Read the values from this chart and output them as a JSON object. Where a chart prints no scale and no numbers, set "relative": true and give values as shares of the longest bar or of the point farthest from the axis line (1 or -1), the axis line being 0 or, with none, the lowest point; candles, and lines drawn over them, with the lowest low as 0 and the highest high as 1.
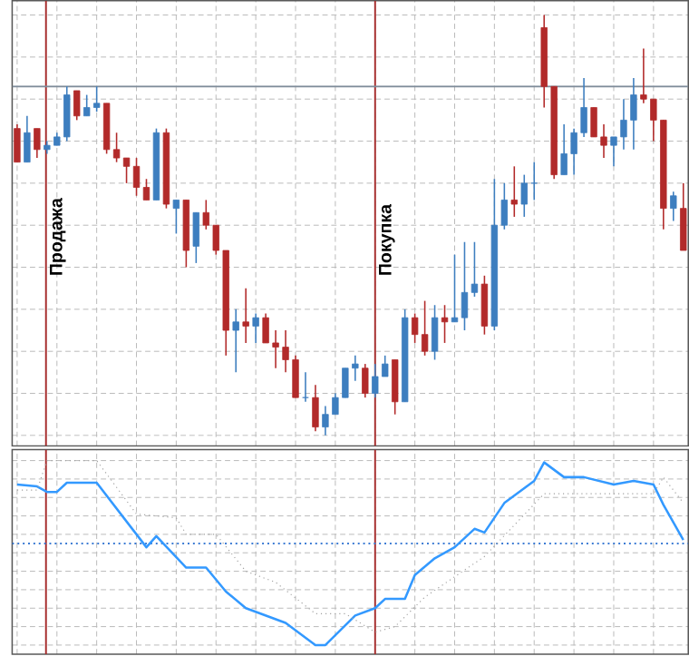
{
  "chart_data": [
    {
      "type": "candlestick",
      "relative": true,
      "grid": true,
      "tick_labels": false,
      "annotations": [
        "Продажа",
        "Покупка"
      ],
      "categories": [
        null,
        null,
        null,
        null,
        null,
        null,
        null,
        null,
        null,
        null,
        null,
        null,
        null,
        null,
        null,
        null,
        null,
        null,
        null,
        null,
        null,
        null,
        null,
        null,
        null,
        null,
        null,
        null,
        null,
        null,
        null,
        null,
        null,
        null,
        null,
        null,
        null,
        null,
        null,
        null,
        null,
        null,
        null,
        null,
        null,
        null,
        null,
        null,
        null,
        null,
        null,
        null,
        null,
        null,
        null,
        null,
        null,
        null,
        null,
        null,
        null,
        null,
        null,
        null,
        null,
        null,
        null,
        null
      ],
      "ohlc": [
        [
          0.73,
          0.74,
          0.65,
          0.65
        ],
        [
          0.65,
          0.76,
          0.65,
          0.72
        ],
        [
          0.73,
          0.73,
          0.66,
          0.68
        ],
        [
          0.68,
          0.7,
          0.67,
          0.69
        ],
        [
          0.69,
          0.72,
          0.69,
          0.71
        ],
        [
          0.71,
          0.83,
          0.7,
          0.81
        ],
        [
          0.82,
          0.82,
          0.75,
          0.76
        ],
        [
          0.76,
          0.81,
          0.76,
          0.78
        ],
        [
          0.78,
          0.83,
          0.77,
          0.79
        ],
        [
          0.79,
          0.79,
          0.67,
          0.68
        ],
        [
          0.68,
          0.72,
          0.65,
          0.66
        ],
        [
          0.66,
          0.66,
          0.6,
          0.64
        ],
        [
          0.64,
          0.66,
          0.57,
          0.59
        ],
        [
          0.59,
          0.61,
          0.56,
          0.56
        ],
        [
          0.56,
          0.73,
          0.56,
          0.72
        ],
        [
          0.72,
          0.73,
          0.54,
          0.55
        ],
        [
          0.54,
          0.56,
          0.48,
          0.56
        ],
        [
          0.56,
          0.56,
          0.4,
          0.44
        ],
        [
          0.45,
          0.53,
          0.41,
          0.53
        ],
        [
          0.53,
          0.56,
          0.49,
          0.5
        ],
        [
          0.5,
          0.5,
          0.43,
          0.44
        ],
        [
          0.44,
          0.44,
          0.19,
          0.25
        ],
        [
          0.25,
          0.3,
          0.15,
          0.27
        ],
        [
          0.27,
          0.35,
          0.22,
          0.26
        ],
        [
          0.26,
          0.29,
          0.22,
          0.28
        ],
        [
          0.28,
          0.29,
          0.22,
          0.22
        ],
        [
          0.22,
          0.25,
          0.16,
          0.21
        ],
        [
          0.21,
          0.25,
          0.15,
          0.18
        ],
        [
          0.18,
          0.19,
          0.09,
          0.09
        ],
        [
          0.09,
          0.15,
          0.08,
          0.09
        ],
        [
          0.09,
          0.12,
          0.01,
          0.02
        ],
        [
          0.02,
          0.07,
          0,
          0.05
        ],
        [
          0.05,
          0.1,
          0.05,
          0.09
        ],
        [
          0.09,
          0.16,
          0.09,
          0.16
        ],
        [
          0.16,
          0.19,
          0.13,
          0.17
        ],
        [
          0.16,
          0.17,
          0.09,
          0.1
        ],
        [
          0.1,
          0.17,
          0.09,
          0.14
        ],
        [
          0.14,
          0.19,
          0.14,
          0.17
        ],
        [
          0.18,
          0.18,
          0.05,
          0.08
        ],
        [
          0.08,
          0.3,
          0.08,
          0.28
        ],
        [
          0.28,
          0.29,
          0.22,
          0.24
        ],
        [
          0.24,
          0.32,
          0.19,
          0.2
        ],
        [
          0.2,
          0.31,
          0.18,
          0.28
        ],
        [
          0.28,
          0.31,
          0.22,
          0.27
        ],
        [
          0.27,
          0.43,
          0.27,
          0.28
        ],
        [
          0.28,
          0.46,
          0.25,
          0.34
        ],
        [
          0.34,
          0.46,
          0.33,
          0.36
        ],
        [
          0.36,
          0.38,
          0.24,
          0.26
        ],
        [
          0.26,
          0.61,
          0.25,
          0.5
        ],
        [
          0.5,
          0.6,
          0.49,
          0.56
        ],
        [
          0.56,
          0.64,
          0.52,
          0.55
        ],
        [
          0.55,
          0.62,
          0.52,
          0.6
        ],
        [
          0.6,
          0.65,
          0.56,
          0.6
        ],
        [
          0.97,
          1.0,
          0.78,
          0.83
        ],
        [
          0.83,
          0.83,
          0.61,
          0.62
        ],
        [
          0.62,
          0.74,
          0.62,
          0.67
        ],
        [
          0.67,
          0.73,
          0.62,
          0.72
        ],
        [
          0.72,
          0.85,
          0.71,
          0.78
        ],
        [
          0.78,
          0.78,
          0.71,
          0.71
        ],
        [
          0.71,
          0.74,
          0.66,
          0.69
        ],
        [
          0.69,
          0.71,
          0.64,
          0.71
        ],
        [
          0.71,
          0.8,
          0.68,
          0.75
        ],
        [
          0.75,
          0.85,
          0.68,
          0.81
        ],
        [
          0.81,
          0.92,
          0.79,
          0.8
        ],
        [
          0.8,
          0.8,
          0.7,
          0.75
        ],
        [
          0.75,
          0.75,
          0.49,
          0.54
        ],
        [
          0.54,
          0.58,
          0.51,
          0.57
        ],
        [
          0.54,
          0.6,
          0.44,
          0.44
        ]
      ],
      "colors": [
        "#b22a2a",
        "#3d7ebf",
        "#b22a2a",
        "#3d7ebf",
        "#3d7ebf",
        "#3d7ebf",
        "#b22a2a",
        "#3d7ebf",
        "#3d7ebf",
        "#b22a2a",
        "#b22a2a",
        "#b22a2a",
        "#b22a2a",
        "#b22a2a",
        "#3d7ebf",
        "#b22a2a",
        "#3d7ebf",
        "#b22a2a",
        "#3d7ebf",
        "#b22a2a",
        "#b22a2a",
        "#b22a2a",
        "#3d7ebf",
        "#b22a2a",
        "#3d7ebf",
        "#b22a2a",
        "#b22a2a",
        "#b22a2a",
        "#b22a2a",
        "#3d7ebf",
        "#b22a2a",
        "#3d7ebf",
        "#3d7ebf",
        "#3d7ebf",
        "#3d7ebf",
        "#b22a2a",
        "#3d7ebf",
        "#3d7ebf",
        "#b22a2a",
        "#3d7ebf",
        "#b22a2a",
        "#b22a2a",
        "#3d7ebf",
        "#b22a2a",
        "#3d7ebf",
        "#3d7ebf",
        "#3d7ebf",
        "#b22a2a",
        "#3d7ebf",
        "#3d7ebf",
        "#b22a2a",
        "#3d7ebf",
        "#3d7ebf",
        "#b22a2a",
        "#b22a2a",
        "#3d7ebf",
        "#3d7ebf",
        "#3d7ebf",
        "#b22a2a",
        "#b22a2a",
        "#3d7ebf",
        "#3d7ebf",
        "#3d7ebf",
        "#b22a2a",
        "#b22a2a",
        "#b22a2a",
        "#3d7ebf",
        "#b22a2a"
      ],
      "ref_lines": [
        {
          "axis": "y",
          "value": 0.83,
          "color": "#7f8c9a"
        }
      ]
    },
    {
      "type": "line",
      "relative": true,
      "grid": true,
      "tick_labels": false,
      "categories": [
        null,
        null,
        null,
        null,
        null,
        null,
        null,
        null,
        null,
        null,
        null,
        null,
        null,
        null,
        null,
        null,
        null,
        null,
        null,
        null,
        null,
        null,
        null,
        null,
        null,
        null,
        null,
        null,
        null,
        null,
        null,
        null,
        null,
        null,
        null,
        null,
        null,
        null,
        null,
        null,
        null,
        null,
        null,
        null,
        null,
        null,
        null,
        null,
        null,
        null,
        null,
        null,
        null,
        null,
        null,
        null,
        null,
        null,
        null,
        null,
        null,
        null,
        null,
        null,
        null,
        null,
        null,
        null
      ],
      "series": [
        {
          "color": "#3399ff",
          "line_style": "solid",
          "values": [
            0.87,
            null,
            0.86,
            0.83,
            0.83,
            0.88,
            null,
            null,
            0.88,
            null,
            null,
            null,
            null,
            0.53,
            0.59,
            null,
            null,
            0.42,
            null,
            0.42,
            null,
            0.29,
            null,
            0.2,
            null,
            null,
            null,
            0.12,
            null,
            null,
            0,
            0,
            null,
            null,
            0.16,
            null,
            0.2,
            0.25,
            null,
            0.25,
            0.38,
            null,
            0.47,
            null,
            0.53,
            null,
            0.63,
            0.61,
            null,
            0.77,
            null,
            null,
            0.89,
            0.99,
            null,
            0.91,
            null,
            0.91,
            null,
            null,
            0.87,
            null,
            0.89,
            null,
            0.87,
            0.76,
            null,
            0.57
          ]
        },
        {
          "color": "#a0a0a0",
          "line_style": "dotted",
          "values": [
            0.84,
            null,
            0.84,
            1.0,
            null,
            null,
            null,
            null,
            1.0,
            null,
            null,
            null,
            0.71,
            null,
            null,
            null,
            0.69,
            0.6,
            null,
            null,
            0.6,
            null,
            null,
            0.4,
            null,
            null,
            0.34,
            null,
            null,
            null,
            0.17,
            null,
            null,
            0.17,
            null,
            null,
            0.07,
            null,
            0.1,
            null,
            null,
            0.26,
            null,
            null,
            null,
            null,
            null,
            0.48,
            null,
            null,
            null,
            null,
            null,
            0.82,
            null,
            null,
            null,
            null,
            null,
            null,
            null,
            null,
            null,
            null,
            0.82,
            0.91,
            null,
            0.77
          ]
        }
      ],
      "ref_lines": [
        {
          "axis": "y",
          "value": 0.55,
          "color": "#3b7bd4",
          "line_style": "dotted"
        }
      ]
    }
  ]
}
